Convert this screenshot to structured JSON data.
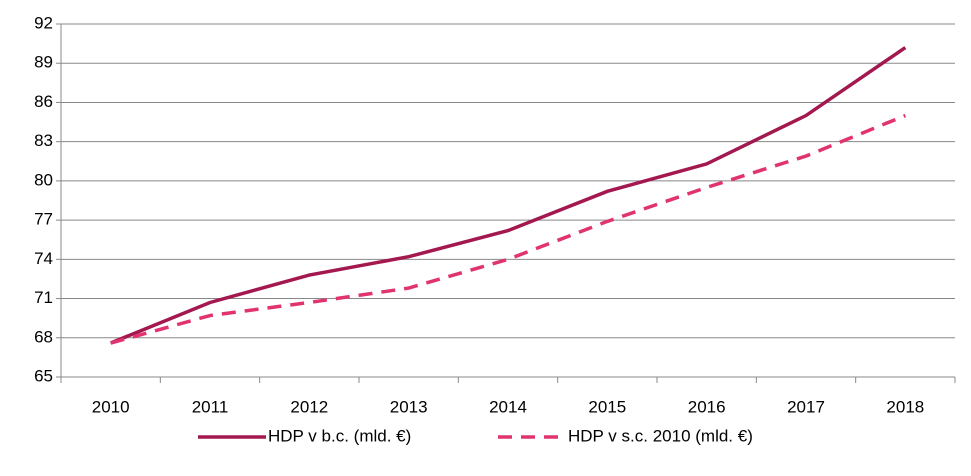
{
  "chart_data": {
    "type": "line",
    "categories": [
      "2010",
      "2011",
      "2012",
      "2013",
      "2014",
      "2015",
      "2016",
      "2017",
      "2018"
    ],
    "series": [
      {
        "name": "HDP v b.c. (mld. €)",
        "color": "#a3184e",
        "style": "solid",
        "values": [
          67.6,
          70.7,
          72.8,
          74.2,
          76.2,
          79.2,
          81.3,
          85.0,
          90.2
        ]
      },
      {
        "name": "HDP v s.c. 2010 (mld. €)",
        "color": "#e0336f",
        "style": "dashed",
        "values": [
          67.6,
          69.7,
          70.7,
          71.8,
          74.0,
          76.9,
          79.5,
          81.9,
          85.0
        ]
      }
    ],
    "ylim": [
      65,
      92
    ],
    "yticks": [
      65,
      68,
      71,
      74,
      77,
      80,
      83,
      86,
      89,
      92
    ],
    "grid": true,
    "legend": "bottom"
  }
}
